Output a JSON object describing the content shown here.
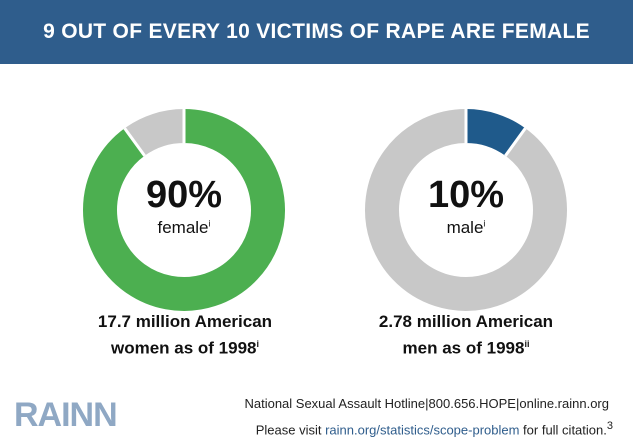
{
  "banner": {
    "title": "9 OUT OF EVERY 10 VICTIMS OF RAPE ARE FEMALE"
  },
  "chart_data": [
    {
      "type": "pie",
      "title": "",
      "slices": [
        {
          "label": "female",
          "value": 90,
          "color": "#4caf50"
        },
        {
          "label": "",
          "value": 10,
          "color": "#c8c8c8"
        }
      ],
      "center_value": "90%",
      "center_label": "female",
      "center_superscript": "i",
      "caption_line1": "17.7 million American",
      "caption_line2": "women as of 1998",
      "caption_superscript": "i"
    },
    {
      "type": "pie",
      "title": "",
      "slices": [
        {
          "label": "male",
          "value": 10,
          "color": "#1f5a8b"
        },
        {
          "label": "",
          "value": 90,
          "color": "#c8c8c8"
        }
      ],
      "center_value": "10%",
      "center_label": "male",
      "center_superscript": "i",
      "caption_line1": "2.78 million American",
      "caption_line2": "men as of 1998",
      "caption_superscript": "ii"
    }
  ],
  "footer": {
    "logo_text": "RAINN",
    "hotline": "National Sexual Assault Hotline",
    "sep": "|",
    "phone": "800.656.HOPE",
    "site": "online.rainn.org",
    "visit_prefix": "Please visit ",
    "visit_link": "rainn.org/statistics/scope-problem",
    "visit_suffix": " for full citation.",
    "citation_num": "3"
  }
}
